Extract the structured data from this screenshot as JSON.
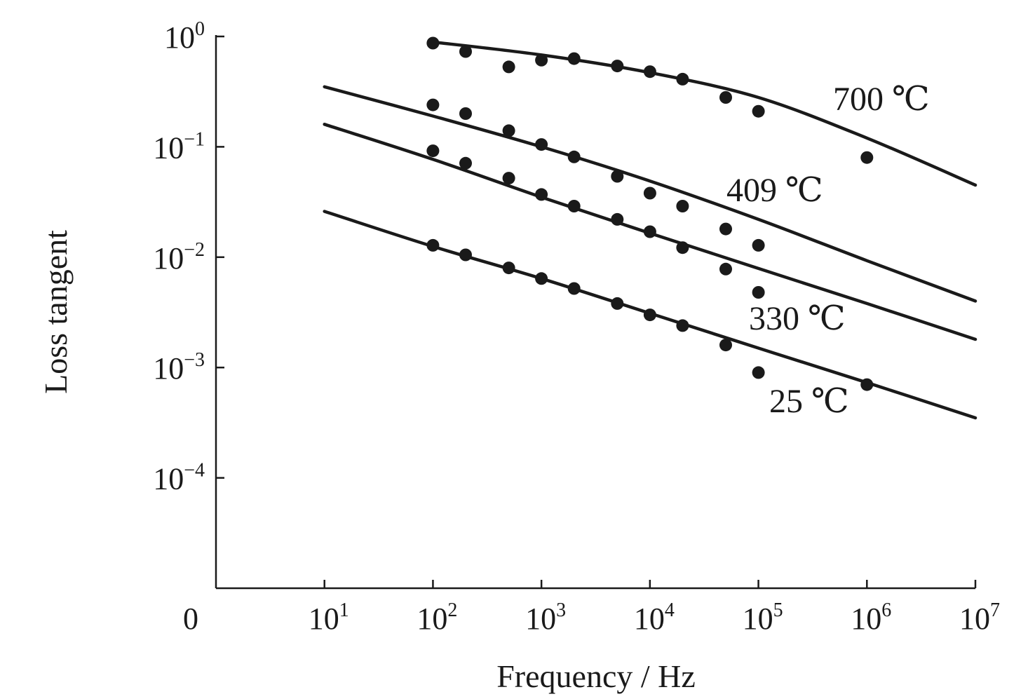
{
  "chart_data": {
    "type": "line",
    "xlabel": "Frequency / Hz",
    "ylabel": "Loss tangent",
    "x_scale": "log",
    "y_scale": "log",
    "xlim": [
      1,
      10000000
    ],
    "ylim": [
      1e-05,
      1
    ],
    "origin_label": "0",
    "x_ticks": [
      {
        "base": "10",
        "exp": "1",
        "value": 10
      },
      {
        "base": "10",
        "exp": "2",
        "value": 100
      },
      {
        "base": "10",
        "exp": "3",
        "value": 1000
      },
      {
        "base": "10",
        "exp": "4",
        "value": 10000
      },
      {
        "base": "10",
        "exp": "5",
        "value": 100000
      },
      {
        "base": "10",
        "exp": "6",
        "value": 1000000
      },
      {
        "base": "10",
        "exp": "7",
        "value": 10000000
      }
    ],
    "y_ticks": [
      {
        "base": "10",
        "exp": "0",
        "value": 1
      },
      {
        "base": "10",
        "exp": "−1",
        "value": 0.1
      },
      {
        "base": "10",
        "exp": "−2",
        "value": 0.01
      },
      {
        "base": "10",
        "exp": "−3",
        "value": 0.001
      },
      {
        "base": "10",
        "exp": "−4",
        "value": 0.0001
      }
    ],
    "grid": false,
    "series": [
      {
        "name": "700 ℃",
        "fit_x": [
          100,
          1000,
          10000,
          100000,
          1000000,
          10000000
        ],
        "fit_y": [
          0.89,
          0.68,
          0.47,
          0.28,
          0.12,
          0.045
        ],
        "points": [
          [
            100,
            0.87
          ],
          [
            200,
            0.73
          ],
          [
            500,
            0.53
          ],
          [
            1000,
            0.61
          ],
          [
            2000,
            0.63
          ],
          [
            5000,
            0.54
          ],
          [
            10000,
            0.48
          ],
          [
            20000,
            0.41
          ],
          [
            50000,
            0.28
          ],
          [
            100000,
            0.21
          ],
          [
            1000000,
            0.08
          ]
        ]
      },
      {
        "name": "409 ℃",
        "fit_x": [
          10,
          100,
          1000,
          10000,
          100000,
          1000000,
          10000000
        ],
        "fit_y": [
          0.35,
          0.19,
          0.1,
          0.049,
          0.022,
          0.0093,
          0.004
        ],
        "points": [
          [
            100,
            0.24
          ],
          [
            200,
            0.2
          ],
          [
            500,
            0.14
          ],
          [
            1000,
            0.105
          ],
          [
            2000,
            0.081
          ],
          [
            5000,
            0.054
          ],
          [
            10000,
            0.038
          ],
          [
            20000,
            0.029
          ],
          [
            50000,
            0.018
          ],
          [
            100000,
            0.0128
          ]
        ]
      },
      {
        "name": "330 ℃",
        "fit_x": [
          10,
          100,
          1000,
          10000,
          100000,
          1000000,
          10000000
        ],
        "fit_y": [
          0.16,
          0.077,
          0.035,
          0.0165,
          0.0079,
          0.0038,
          0.0018
        ],
        "points": [
          [
            100,
            0.092
          ],
          [
            200,
            0.071
          ],
          [
            500,
            0.052
          ],
          [
            1000,
            0.037
          ],
          [
            2000,
            0.029
          ],
          [
            5000,
            0.022
          ],
          [
            10000,
            0.017
          ],
          [
            20000,
            0.0122
          ],
          [
            50000,
            0.0078
          ],
          [
            100000,
            0.0048
          ]
        ]
      },
      {
        "name": "25 ℃",
        "fit_x": [
          10,
          100,
          1000,
          10000,
          100000,
          1000000,
          10000000
        ],
        "fit_y": [
          0.026,
          0.0125,
          0.0064,
          0.0031,
          0.0015,
          0.00073,
          0.00035
        ],
        "points": [
          [
            100,
            0.0128
          ],
          [
            200,
            0.0105
          ],
          [
            500,
            0.008
          ],
          [
            1000,
            0.0064
          ],
          [
            2000,
            0.0052
          ],
          [
            5000,
            0.0038
          ],
          [
            10000,
            0.003
          ],
          [
            20000,
            0.0024
          ],
          [
            50000,
            0.0016
          ],
          [
            100000,
            0.0009
          ],
          [
            1000000,
            0.0007
          ]
        ]
      }
    ]
  }
}
